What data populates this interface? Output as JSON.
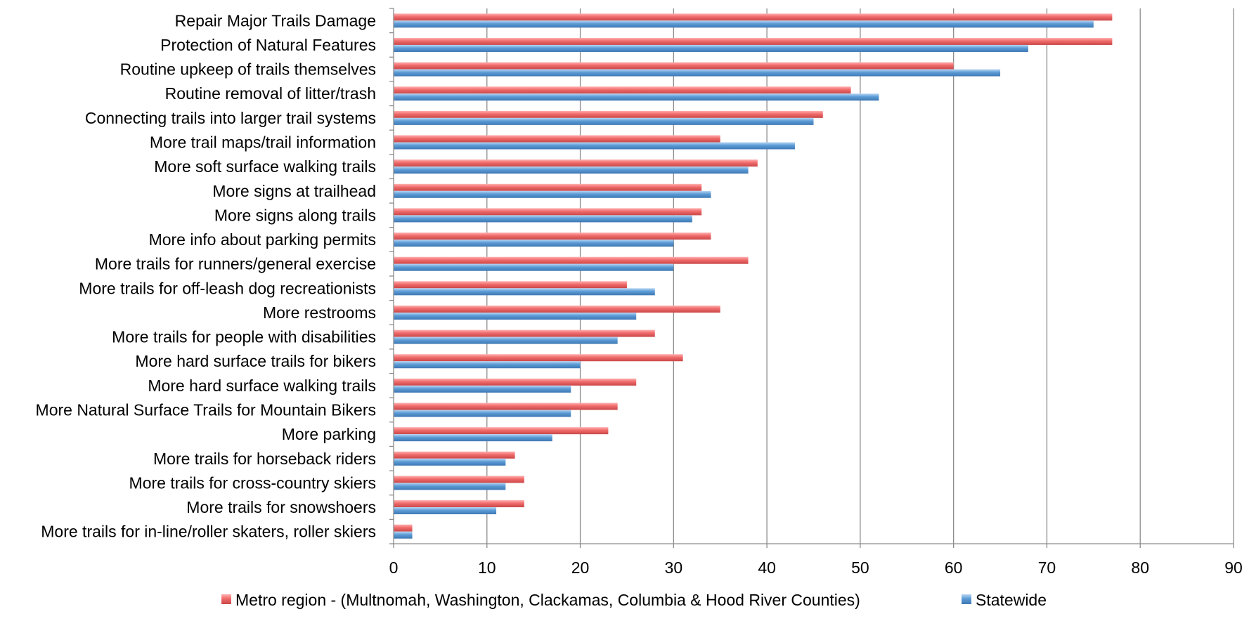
{
  "chart_data": {
    "type": "bar",
    "orientation": "horizontal",
    "title": "",
    "xlabel": "",
    "ylabel": "",
    "xlim": [
      0,
      90
    ],
    "x_ticks": [
      0,
      10,
      20,
      30,
      40,
      50,
      60,
      70,
      80,
      90
    ],
    "grid": "vertical",
    "legend_position": "bottom",
    "categories": [
      "Repair Major Trails Damage",
      "Protection of Natural Features",
      "Routine upkeep of trails themselves",
      "Routine removal of litter/trash",
      "Connecting trails into larger trail systems",
      "More trail maps/trail information",
      "More soft surface walking trails",
      "More signs at trailhead",
      "More signs along trails",
      "More info about parking permits",
      "More trails for runners/general exercise",
      "More trails for off-leash dog recreationists",
      "More restrooms",
      "More trails for people with disabilities",
      "More hard surface trails for bikers",
      "More hard surface walking trails",
      "More Natural Surface Trails for Mountain Bikers",
      "More parking",
      "More trails for horseback riders",
      "More trails for cross-country skiers",
      "More trails for snowshoers",
      "More trails for in-line/roller skaters, roller skiers"
    ],
    "series": [
      {
        "name": "Metro region - (Multnomah, Washington, Clackamas, Columbia & Hood River Counties)",
        "color": "#f06a6a",
        "values": [
          77,
          77,
          60,
          49,
          46,
          35,
          39,
          33,
          33,
          34,
          38,
          25,
          35,
          28,
          31,
          26,
          24,
          23,
          13,
          14,
          14,
          2
        ]
      },
      {
        "name": "Statewide",
        "color": "#5b9bd5",
        "values": [
          75,
          68,
          65,
          52,
          45,
          43,
          38,
          34,
          32,
          30,
          30,
          28,
          26,
          24,
          20,
          19,
          19,
          17,
          12,
          12,
          11,
          2
        ]
      }
    ]
  }
}
